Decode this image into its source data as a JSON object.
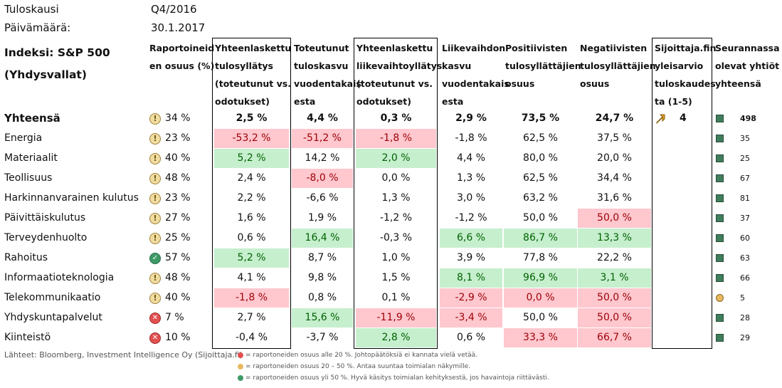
{
  "meta": {
    "period_label": "Tuloskausi",
    "period_value": "Q4/2016",
    "date_label": "Päivämäärä:",
    "date_value": "30.1.2017"
  },
  "headers": {
    "index_line1": "Indeksi: S&P 500",
    "index_line2": "(Yhdysvallat)",
    "reported": [
      "Raportoineid",
      "en osuus (%)"
    ],
    "earnings_surprise": [
      "Yhteenlaskettu",
      "tulosyllätys",
      "(toteutunut vs.",
      "odotukset)"
    ],
    "earnings_growth": [
      "Toteutunut",
      "tuloskasvu",
      "vuodentakais",
      "esta"
    ],
    "revenue_surprise": [
      "Yhteenlaskettu",
      "liikevaihtoyllätys",
      "(toteutunut vs.",
      "odotukset)"
    ],
    "revenue_growth": [
      "Liikevaihdon",
      "kasvu",
      "vuodentakais",
      "esta"
    ],
    "positive": [
      "Positiivisten",
      "tulosyllättäjien",
      "osuus"
    ],
    "negative": [
      "Negatiivisten",
      "tulosyllättäjien",
      "osuus"
    ],
    "outlook": [
      "Sijoittaja.fin",
      "yleisarvio",
      "tuloskaudes",
      "ta (1-5)"
    ],
    "count": [
      "Seurannassa",
      "olevat yhtiöt",
      "yhteensä"
    ]
  },
  "rows": [
    {
      "name": "Yhteensä",
      "status": "warn",
      "reported": "34 %",
      "es": "2,5 %",
      "eg": "4,4 %",
      "rs": "0,3 %",
      "rg": "2,9 %",
      "pos": "73,5 %",
      "neg": "24,7 %",
      "outlook": "4",
      "count": "498",
      "marker": "green",
      "hl": {}
    },
    {
      "name": "Energia",
      "status": "warn",
      "reported": "23 %",
      "es": "-53,2 %",
      "eg": "-51,2 %",
      "rs": "-1,8 %",
      "rg": "-1,8 %",
      "pos": "62,5 %",
      "neg": "37,5 %",
      "outlook": "",
      "count": "35",
      "marker": "green",
      "hl": {
        "es": "neg",
        "eg": "neg",
        "rs": "neg"
      }
    },
    {
      "name": "Materiaalit",
      "status": "warn",
      "reported": "40 %",
      "es": "5,2 %",
      "eg": "14,2 %",
      "rs": "2,0 %",
      "rg": "4,4 %",
      "pos": "80,0 %",
      "neg": "20,0 %",
      "outlook": "",
      "count": "25",
      "marker": "green",
      "hl": {
        "es": "pos",
        "rs": "pos"
      }
    },
    {
      "name": "Teollisuus",
      "status": "warn",
      "reported": "48 %",
      "es": "2,4 %",
      "eg": "-8,0 %",
      "rs": "0,0 %",
      "rg": "1,3 %",
      "pos": "62,5 %",
      "neg": "34,4 %",
      "outlook": "",
      "count": "67",
      "marker": "green",
      "hl": {
        "eg": "neg"
      }
    },
    {
      "name": "Harkinnanvarainen kulutus",
      "status": "warn",
      "reported": "23 %",
      "es": "2,2 %",
      "eg": "-6,6 %",
      "rs": "1,3 %",
      "rg": "3,0 %",
      "pos": "63,2 %",
      "neg": "31,6 %",
      "outlook": "",
      "count": "81",
      "marker": "green",
      "hl": {}
    },
    {
      "name": "Päivittäiskulutus",
      "status": "warn",
      "reported": "27 %",
      "es": "1,6 %",
      "eg": "1,9 %",
      "rs": "-1,2 %",
      "rg": "-1,2 %",
      "pos": "50,0 %",
      "neg": "50,0 %",
      "outlook": "",
      "count": "37",
      "marker": "green",
      "hl": {
        "neg": "neg"
      }
    },
    {
      "name": "Terveydenhuolto",
      "status": "warn",
      "reported": "25 %",
      "es": "0,6 %",
      "eg": "16,4 %",
      "rs": "-0,3 %",
      "rg": "6,6 %",
      "pos": "86,7 %",
      "neg": "13,3 %",
      "outlook": "",
      "count": "60",
      "marker": "green",
      "hl": {
        "eg": "pos",
        "rg": "pos",
        "pos": "pos",
        "neg": "pos"
      }
    },
    {
      "name": "Rahoitus",
      "status": "ok",
      "reported": "57 %",
      "es": "5,2 %",
      "eg": "8,7 %",
      "rs": "1,0 %",
      "rg": "3,9 %",
      "pos": "77,8 %",
      "neg": "22,2 %",
      "outlook": "",
      "count": "63",
      "marker": "green",
      "hl": {
        "es": "pos"
      }
    },
    {
      "name": "Informaatioteknologia",
      "status": "warn",
      "reported": "48 %",
      "es": "4,1 %",
      "eg": "9,8 %",
      "rs": "1,5 %",
      "rg": "8,1 %",
      "pos": "96,9 %",
      "neg": "3,1 %",
      "outlook": "",
      "count": "66",
      "marker": "green",
      "hl": {
        "rg": "pos",
        "pos": "pos",
        "neg": "pos"
      }
    },
    {
      "name": "Telekommunikaatio",
      "status": "warn",
      "reported": "40 %",
      "es": "-1,8 %",
      "eg": "0,8 %",
      "rs": "0,1 %",
      "rg": "-2,9 %",
      "pos": "0,0 %",
      "neg": "50,0 %",
      "outlook": "",
      "count": "5",
      "marker": "yellow",
      "hl": {
        "es": "neg",
        "rg": "neg",
        "pos": "neg",
        "neg": "neg"
      }
    },
    {
      "name": "Yhdyskuntapalvelut",
      "status": "bad",
      "reported": "7 %",
      "es": "2,7 %",
      "eg": "15,6 %",
      "rs": "-11,9 %",
      "rg": "-3,4 %",
      "pos": "50,0 %",
      "neg": "50,0 %",
      "outlook": "",
      "count": "28",
      "marker": "green",
      "hl": {
        "eg": "pos",
        "rs": "neg",
        "rg": "neg",
        "neg": "neg"
      }
    },
    {
      "name": "Kiinteistö",
      "status": "bad",
      "reported": "10 %",
      "es": "-0,4 %",
      "eg": "-3,7 %",
      "rs": "2,8 %",
      "rg": "0,6 %",
      "pos": "33,3 %",
      "neg": "66,7 %",
      "outlook": "",
      "count": "29",
      "marker": "green",
      "hl": {
        "rs": "pos",
        "pos": "neg",
        "neg": "neg"
      }
    }
  ],
  "footer": {
    "source": "Lähteet: Bloomberg, Investment Intelligence Oy (Sijoittaja.fi)",
    "legend": [
      {
        "color": "#e25050",
        "text": "= raportoneiden osuus alle 20 %. Johtopäätöksiä ei kannata vielä vetää."
      },
      {
        "color": "#e8b860",
        "text": "= raportoneiden osuus 20 – 50 %. Antaa suuntaa toimialan näkymille."
      },
      {
        "color": "#3d9a66",
        "text": "= raportoneiden osuus yli 50 %. Hyvä käsitys toimialan kehityksestä, jos havaintoja riittävästi."
      }
    ]
  }
}
